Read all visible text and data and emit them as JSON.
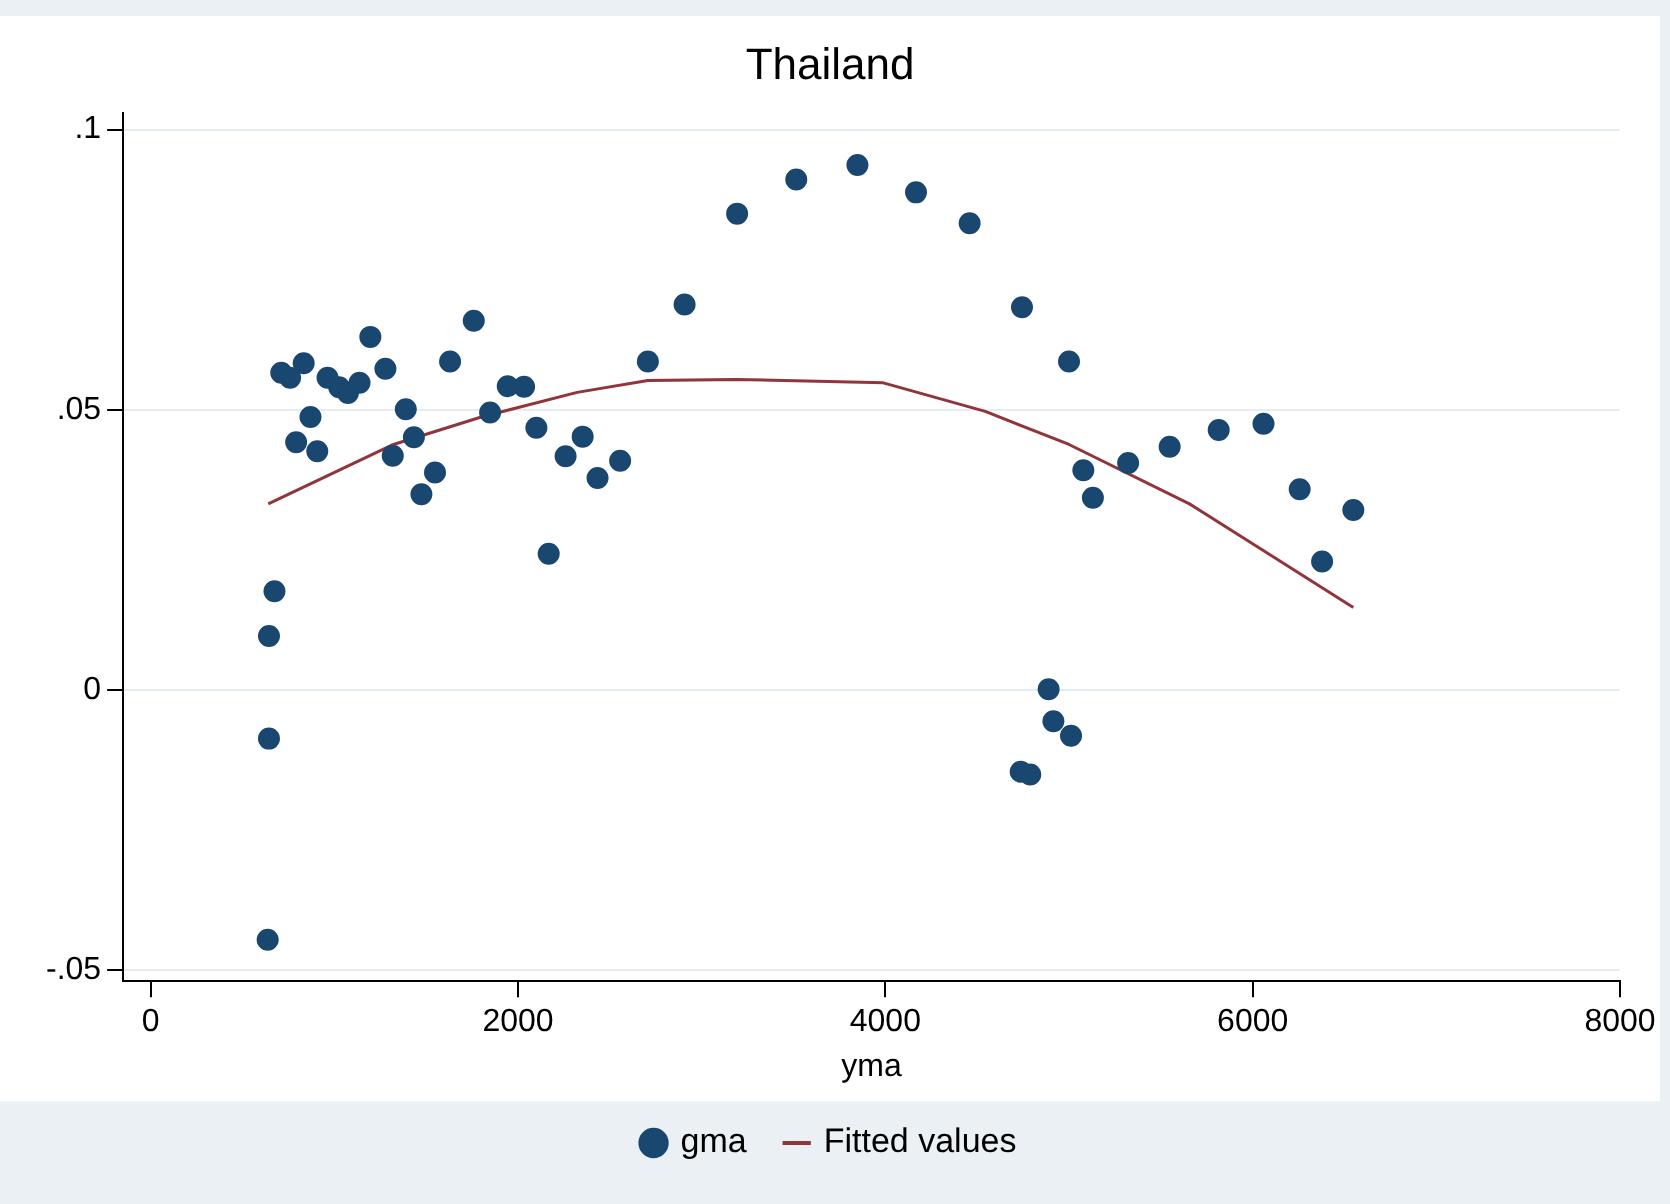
{
  "chart_data": {
    "type": "scatter",
    "title": "Thailand",
    "xlabel": "yma",
    "xlim": [
      -150,
      8000
    ],
    "xticks": [
      0,
      2000,
      4000,
      6000,
      8000
    ],
    "ylim": [
      -0.052,
      0.103
    ],
    "yticks": [
      {
        "value": -0.05,
        "label": "-.05"
      },
      {
        "value": 0,
        "label": "0"
      },
      {
        "value": 0.05,
        "label": ".05"
      },
      {
        "value": 0.1,
        "label": ".1"
      }
    ],
    "grid": "y",
    "legend": "bottom",
    "marker": "circle",
    "series": [
      {
        "name": "gma",
        "color": "#1a476f",
        "x": [
          637,
          644,
          644,
          674,
          711,
          759,
          792,
          833,
          870,
          907,
          963,
          1026,
          1074,
          1137,
          1196,
          1278,
          1318,
          1389,
          1433,
          1474,
          1548,
          1630,
          1759,
          1848,
          1944,
          2033,
          2100,
          2167,
          2259,
          2352,
          2433,
          2556,
          2707,
          2907,
          3193,
          3515,
          3848,
          4167,
          4459,
          4744,
          4737,
          4789,
          4889,
          4915,
          5011,
          5000,
          5078,
          5130,
          5322,
          5548,
          5815,
          6059,
          6256,
          6378,
          6548
        ],
        "values": [
          -0.0446,
          -0.0087,
          0.0096,
          0.0176,
          0.0566,
          0.0557,
          0.0442,
          0.0583,
          0.0487,
          0.0426,
          0.0557,
          0.054,
          0.053,
          0.0548,
          0.063,
          0.0573,
          0.0418,
          0.0501,
          0.0451,
          0.0349,
          0.0388,
          0.0586,
          0.0659,
          0.0495,
          0.0542,
          0.0541,
          0.0468,
          0.0243,
          0.0417,
          0.0452,
          0.0378,
          0.0409,
          0.0586,
          0.0688,
          0.085,
          0.0911,
          0.0937,
          0.0888,
          0.0833,
          0.0683,
          -0.0146,
          -0.0151,
          0.0001,
          -0.0056,
          -0.0082,
          0.0586,
          0.0392,
          0.0343,
          0.0405,
          0.0434,
          0.0464,
          0.0475,
          0.0358,
          0.0229,
          0.0321
        ]
      },
      {
        "name": "Fitted values",
        "type": "line",
        "color": "#90353b",
        "marker": "none",
        "x": [
          640,
          1322,
          1800,
          2322,
          2707,
          3190,
          3989,
          4544,
          5000,
          5656,
          6548
        ],
        "values": [
          0.0332,
          0.0438,
          0.0487,
          0.0531,
          0.0552,
          0.0554,
          0.0548,
          0.0497,
          0.0438,
          0.0332,
          0.0147
        ]
      }
    ]
  }
}
